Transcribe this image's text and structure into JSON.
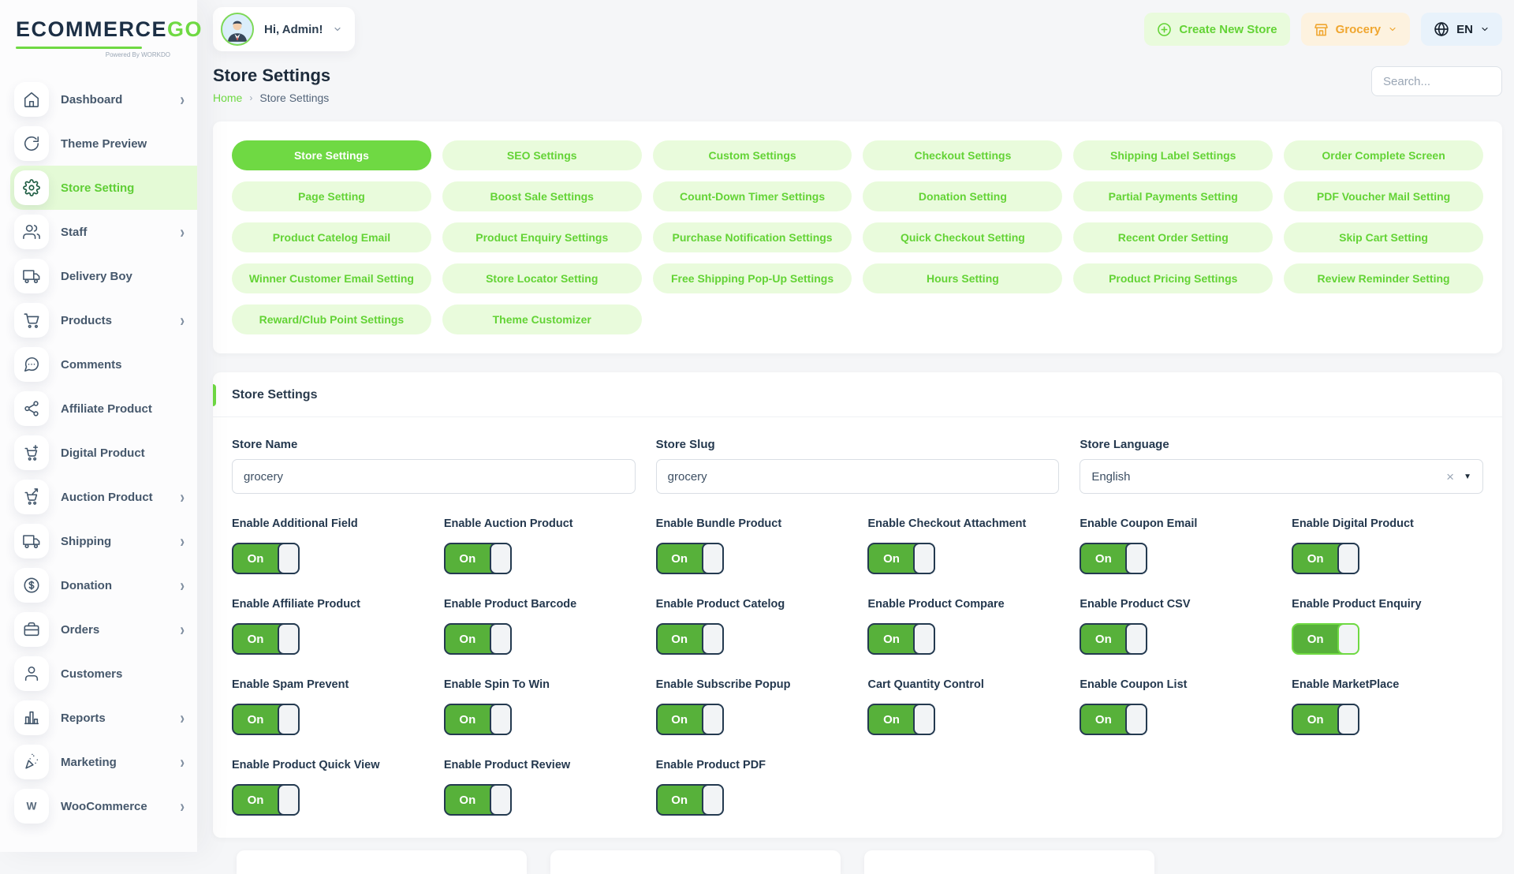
{
  "colors": {
    "accent_green": "#6fd943",
    "light_green": "#e9fbdc",
    "toggle_green": "#57b13a",
    "orange": "#f0a62f",
    "light_orange": "#fdf2df",
    "light_blue": "#e8f2fb",
    "dark_navy": "#1e2c3c"
  },
  "brand": {
    "name_primary": "ECOMMERCE",
    "name_accent": "GO",
    "powered_by": "Powered By WORKDO"
  },
  "header": {
    "greeting": "Hi, Admin!",
    "create_new_store": "Create New Store",
    "store_switcher": "Grocery",
    "language": "EN"
  },
  "sidebar": {
    "items": [
      {
        "label": "Dashboard",
        "icon": "home",
        "chevron": true,
        "active": false
      },
      {
        "label": "Theme Preview",
        "icon": "refresh",
        "chevron": false,
        "active": false
      },
      {
        "label": "Store Setting",
        "icon": "gear",
        "chevron": false,
        "active": true
      },
      {
        "label": "Staff",
        "icon": "users",
        "chevron": true,
        "active": false
      },
      {
        "label": "Delivery Boy",
        "icon": "truck",
        "chevron": false,
        "active": false
      },
      {
        "label": "Products",
        "icon": "cart",
        "chevron": true,
        "active": false
      },
      {
        "label": "Comments",
        "icon": "message",
        "chevron": false,
        "active": false
      },
      {
        "label": "Affiliate Product",
        "icon": "network",
        "chevron": false,
        "active": false
      },
      {
        "label": "Digital Product",
        "icon": "cart-plus",
        "chevron": false,
        "active": false
      },
      {
        "label": "Auction Product",
        "icon": "cart-arrow",
        "chevron": true,
        "active": false
      },
      {
        "label": "Shipping",
        "icon": "truck",
        "chevron": true,
        "active": false
      },
      {
        "label": "Donation",
        "icon": "dollar",
        "chevron": true,
        "active": false
      },
      {
        "label": "Orders",
        "icon": "briefcase",
        "chevron": true,
        "active": false
      },
      {
        "label": "Customers",
        "icon": "user",
        "chevron": false,
        "active": false
      },
      {
        "label": "Reports",
        "icon": "chart",
        "chevron": true,
        "active": false
      },
      {
        "label": "Marketing",
        "icon": "party",
        "chevron": true,
        "active": false
      },
      {
        "label": "WooCommerce",
        "icon": "woo",
        "chevron": true,
        "active": false
      }
    ]
  },
  "page": {
    "title": "Store Settings",
    "breadcrumb_home": "Home",
    "breadcrumb_current": "Store Settings",
    "search_placeholder": "Search..."
  },
  "tabs": {
    "items": [
      {
        "label": "Store Settings",
        "active": true
      },
      {
        "label": "SEO Settings",
        "active": false
      },
      {
        "label": "Custom Settings",
        "active": false
      },
      {
        "label": "Checkout Settings",
        "active": false
      },
      {
        "label": "Shipping Label Settings",
        "active": false
      },
      {
        "label": "Order Complete Screen",
        "active": false
      },
      {
        "label": "Page Setting",
        "active": false
      },
      {
        "label": "Boost Sale Settings",
        "active": false
      },
      {
        "label": "Count-Down Timer Settings",
        "active": false
      },
      {
        "label": "Donation Setting",
        "active": false
      },
      {
        "label": "Partial Payments Setting",
        "active": false
      },
      {
        "label": "PDF Voucher Mail Setting",
        "active": false
      },
      {
        "label": "Product Catelog Email",
        "active": false
      },
      {
        "label": "Product Enquiry Settings",
        "active": false
      },
      {
        "label": "Purchase Notification Settings",
        "active": false
      },
      {
        "label": "Quick Checkout Setting",
        "active": false
      },
      {
        "label": "Recent Order Setting",
        "active": false
      },
      {
        "label": "Skip Cart Setting",
        "active": false
      },
      {
        "label": "Winner Customer Email Setting",
        "active": false
      },
      {
        "label": "Store Locator Setting",
        "active": false
      },
      {
        "label": "Free Shipping Pop-Up Settings",
        "active": false
      },
      {
        "label": "Hours Setting",
        "active": false
      },
      {
        "label": "Product Pricing Settings",
        "active": false
      },
      {
        "label": "Review Reminder Setting",
        "active": false
      },
      {
        "label": "Reward/Club Point Settings",
        "active": false
      },
      {
        "label": "Theme Customizer",
        "active": false
      }
    ]
  },
  "card": {
    "title": "Store Settings",
    "fields": [
      {
        "label": "Store Name",
        "value": "grocery"
      },
      {
        "label": "Store Slug",
        "value": "grocery"
      },
      {
        "label": "Store Language",
        "value": "English"
      }
    ],
    "toggles": [
      {
        "label": "Enable Additional Field",
        "state": "On",
        "highlight": false
      },
      {
        "label": "Enable Auction Product",
        "state": "On",
        "highlight": false
      },
      {
        "label": "Enable Bundle Product",
        "state": "On",
        "highlight": false
      },
      {
        "label": "Enable Checkout Attachment",
        "state": "On",
        "highlight": false
      },
      {
        "label": "Enable Coupon Email",
        "state": "On",
        "highlight": false
      },
      {
        "label": "Enable Digital Product",
        "state": "On",
        "highlight": false
      },
      {
        "label": "Enable Affiliate Product",
        "state": "On",
        "highlight": false
      },
      {
        "label": "Enable Product Barcode",
        "state": "On",
        "highlight": false
      },
      {
        "label": "Enable Product Catelog",
        "state": "On",
        "highlight": false
      },
      {
        "label": "Enable Product Compare",
        "state": "On",
        "highlight": false
      },
      {
        "label": "Enable Product CSV",
        "state": "On",
        "highlight": false
      },
      {
        "label": "Enable Product Enquiry",
        "state": "On",
        "highlight": true
      },
      {
        "label": "Enable Spam Prevent",
        "state": "On",
        "highlight": false
      },
      {
        "label": "Enable Spin To Win",
        "state": "On",
        "highlight": false
      },
      {
        "label": "Enable Subscribe Popup",
        "state": "On",
        "highlight": false
      },
      {
        "label": "Cart Quantity Control",
        "state": "On",
        "highlight": false
      },
      {
        "label": "Enable Coupon List",
        "state": "On",
        "highlight": false
      },
      {
        "label": "Enable MarketPlace",
        "state": "On",
        "highlight": false
      },
      {
        "label": "Enable Product Quick View",
        "state": "On",
        "highlight": false
      },
      {
        "label": "Enable Product Review",
        "state": "On",
        "highlight": false
      },
      {
        "label": "Enable Product PDF",
        "state": "On",
        "highlight": false
      }
    ]
  }
}
